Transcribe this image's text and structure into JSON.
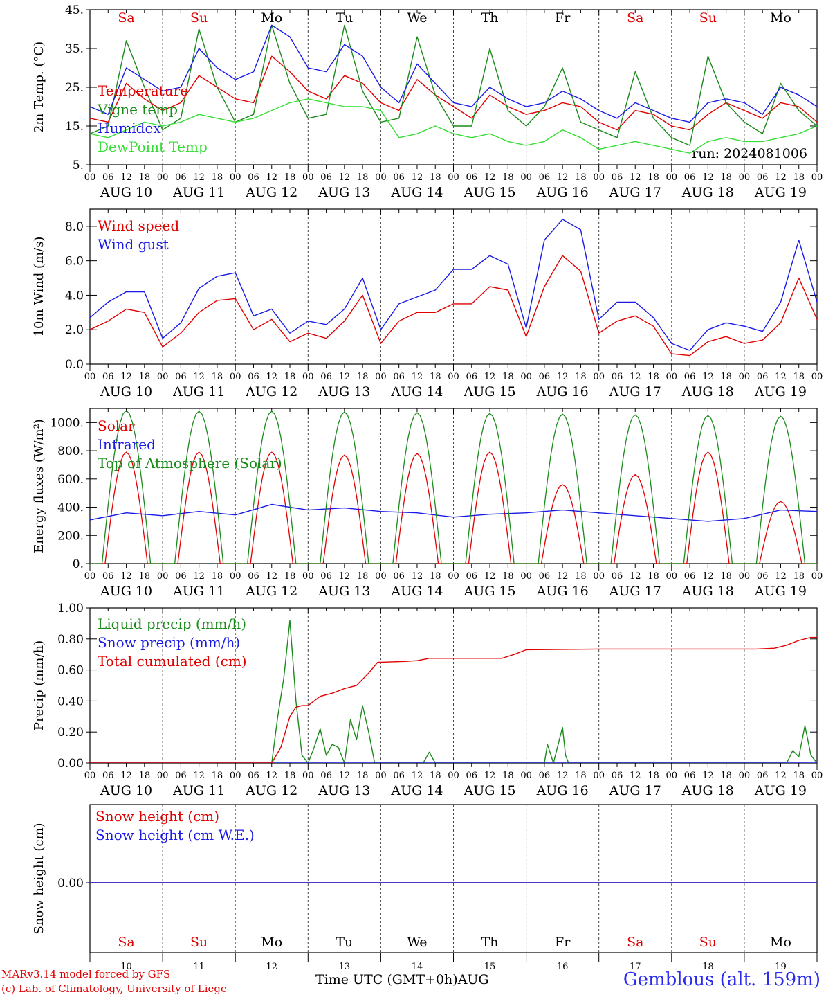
{
  "footer": {
    "credit_line1": "MARv3.14 model forced by GFS",
    "credit_line2": "(c) Lab. of Climatology, University of Liege",
    "xaxis_label": "Time UTC (GMT+0h)AUG",
    "station": "Gemblous (alt. 159m)"
  },
  "colors": {
    "red": "#e00000",
    "green": "#1a8a1a",
    "blue": "#1a1ae6",
    "lightgreen": "#33dd33",
    "purple": "#7a2a9a"
  },
  "chart_data": [
    {
      "type": "line",
      "ylabel": "2m Temp. (°C)",
      "ylim": [
        5,
        45
      ],
      "yticks": [
        "5.",
        "15.",
        "25.",
        "35.",
        "45."
      ],
      "ytick_values": [
        5,
        15,
        25,
        35,
        45
      ],
      "day_names": [
        "Sa",
        "Su",
        "Mo",
        "Tu",
        "We",
        "Th",
        "Fr",
        "Sa",
        "Su",
        "Mo"
      ],
      "day_name_colors": [
        "red",
        "red",
        "black",
        "black",
        "black",
        "black",
        "black",
        "red",
        "red",
        "black"
      ],
      "hour_ticks": [
        "00",
        "06",
        "12",
        "18"
      ],
      "date_labels": [
        "AUG 10",
        "AUG 11",
        "AUG 12",
        "AUG 13",
        "AUG 14",
        "AUG 15",
        "AUG 16",
        "AUG 17",
        "AUG 18",
        "AUG 19"
      ],
      "annotation": "run: 2024081006",
      "x_unit": "hours since AUG 10 00 UTC",
      "series": [
        {
          "name": "Temperature",
          "color": "red",
          "x": [
            0,
            6,
            12,
            18,
            24,
            30,
            36,
            42,
            48,
            54,
            60,
            66,
            72,
            78,
            84,
            90,
            96,
            102,
            108,
            114,
            120,
            126,
            132,
            138,
            144,
            150,
            156,
            162,
            168,
            174,
            180,
            186,
            192,
            198,
            204,
            210,
            216,
            222,
            228,
            234,
            240
          ],
          "y": [
            17,
            16,
            26,
            22,
            19,
            21,
            28,
            25,
            22,
            21,
            33,
            29,
            24,
            22,
            28,
            26,
            21,
            19,
            27,
            23,
            20,
            17,
            23,
            20,
            18,
            19,
            21,
            20,
            16,
            14,
            19,
            18,
            15,
            14,
            18,
            21,
            19,
            17,
            21,
            20,
            16
          ]
        },
        {
          "name": "Vigne temp",
          "color": "green",
          "x": [
            0,
            6,
            12,
            18,
            24,
            30,
            36,
            42,
            48,
            54,
            60,
            66,
            72,
            78,
            84,
            90,
            96,
            102,
            108,
            114,
            120,
            126,
            132,
            138,
            144,
            150,
            156,
            162,
            168,
            174,
            180,
            186,
            192,
            198,
            204,
            210,
            216,
            222,
            228,
            234,
            240
          ],
          "y": [
            13,
            15,
            37,
            25,
            14,
            17,
            40,
            25,
            16,
            18,
            41,
            26,
            17,
            18,
            41,
            24,
            16,
            17,
            38,
            23,
            15,
            15,
            35,
            19,
            15,
            20,
            30,
            16,
            14,
            12,
            29,
            17,
            12,
            10,
            33,
            21,
            16,
            13,
            26,
            19,
            15
          ]
        },
        {
          "name": "Humidex",
          "color": "blue",
          "x": [
            0,
            6,
            12,
            18,
            24,
            30,
            36,
            42,
            48,
            54,
            60,
            66,
            72,
            78,
            84,
            90,
            96,
            102,
            108,
            114,
            120,
            126,
            132,
            138,
            144,
            150,
            156,
            162,
            168,
            174,
            180,
            186,
            192,
            198,
            204,
            210,
            216,
            222,
            228,
            234,
            240
          ],
          "y": [
            20,
            18,
            30,
            27,
            24,
            25,
            35,
            30,
            27,
            29,
            41,
            38,
            30,
            29,
            36,
            33,
            25,
            21,
            31,
            26,
            21,
            20,
            25,
            22,
            20,
            21,
            24,
            22,
            19,
            17,
            21,
            19,
            17,
            16,
            21,
            22,
            21,
            18,
            25,
            23,
            20
          ]
        },
        {
          "name": "DewPoint Temp",
          "color": "lightgreen",
          "x": [
            0,
            6,
            12,
            18,
            24,
            30,
            36,
            42,
            48,
            54,
            60,
            66,
            72,
            78,
            84,
            90,
            96,
            102,
            108,
            114,
            120,
            126,
            132,
            138,
            144,
            150,
            156,
            162,
            168,
            174,
            180,
            186,
            192,
            198,
            204,
            210,
            216,
            222,
            228,
            234,
            240
          ],
          "y": [
            13,
            12,
            14,
            16,
            15,
            16,
            18,
            17,
            16,
            17,
            19,
            21,
            22,
            21,
            20,
            20,
            19,
            12,
            13,
            15,
            13,
            12,
            13,
            11,
            10,
            11,
            14,
            12,
            9,
            10,
            11,
            10,
            9,
            8,
            11,
            12,
            11,
            11,
            12,
            13,
            15
          ]
        }
      ]
    },
    {
      "type": "line",
      "ylabel": "10m Wind (m/s)",
      "ylim": [
        0,
        9
      ],
      "yticks": [
        "0.0",
        "2.0",
        "4.0",
        "6.0",
        "8.0"
      ],
      "ytick_values": [
        0,
        2,
        4,
        6,
        8
      ],
      "reference_line": 5,
      "hour_ticks": [
        "00",
        "06",
        "12",
        "18"
      ],
      "date_labels": [
        "AUG 10",
        "AUG 11",
        "AUG 12",
        "AUG 13",
        "AUG 14",
        "AUG 15",
        "AUG 16",
        "AUG 17",
        "AUG 18",
        "AUG 19"
      ],
      "x_unit": "hours since AUG 10 00 UTC",
      "series": [
        {
          "name": "Wind speed",
          "color": "red",
          "x": [
            0,
            6,
            12,
            18,
            24,
            30,
            36,
            42,
            48,
            54,
            60,
            66,
            72,
            78,
            84,
            90,
            96,
            102,
            108,
            114,
            120,
            126,
            132,
            138,
            144,
            150,
            156,
            162,
            168,
            174,
            180,
            186,
            192,
            198,
            204,
            210,
            216,
            222,
            228,
            234,
            240
          ],
          "y": [
            2.0,
            2.5,
            3.2,
            3.0,
            1.0,
            1.8,
            3.0,
            3.7,
            3.8,
            2.0,
            2.6,
            1.3,
            1.8,
            1.5,
            2.5,
            4.0,
            1.2,
            2.5,
            3.0,
            3.0,
            3.5,
            3.5,
            4.5,
            4.3,
            1.6,
            4.5,
            6.3,
            5.4,
            1.8,
            2.5,
            2.8,
            2.2,
            0.6,
            0.5,
            1.3,
            1.6,
            1.2,
            1.4,
            2.4,
            5.0,
            2.6
          ]
        },
        {
          "name": "Wind gust",
          "color": "blue",
          "x": [
            0,
            6,
            12,
            18,
            24,
            30,
            36,
            42,
            48,
            54,
            60,
            66,
            72,
            78,
            84,
            90,
            96,
            102,
            108,
            114,
            120,
            126,
            132,
            138,
            144,
            150,
            156,
            162,
            168,
            174,
            180,
            186,
            192,
            198,
            204,
            210,
            216,
            222,
            228,
            234,
            240
          ],
          "y": [
            2.7,
            3.6,
            4.2,
            4.2,
            1.5,
            2.4,
            4.4,
            5.1,
            5.3,
            2.8,
            3.2,
            1.8,
            2.5,
            2.3,
            3.2,
            5.0,
            2.0,
            3.5,
            3.9,
            4.3,
            5.5,
            5.5,
            6.3,
            5.8,
            2.1,
            7.2,
            8.4,
            7.8,
            2.6,
            3.6,
            3.6,
            2.7,
            1.2,
            0.8,
            2.0,
            2.4,
            2.2,
            1.9,
            3.6,
            7.2,
            3.6
          ]
        }
      ]
    },
    {
      "type": "line",
      "ylabel": "Energy fluxes (W/m²)",
      "ylim": [
        0,
        1100
      ],
      "yticks": [
        "0.",
        "200.",
        "400.",
        "600.",
        "800.",
        "1000."
      ],
      "ytick_values": [
        0,
        200,
        400,
        600,
        800,
        1000
      ],
      "hour_ticks": [
        "00",
        "06",
        "12",
        "18"
      ],
      "date_labels": [
        "AUG 10",
        "AUG 11",
        "AUG 12",
        "AUG 13",
        "AUG 14",
        "AUG 15",
        "AUG 16",
        "AUG 17",
        "AUG 18",
        "AUG 19"
      ],
      "x_unit": "hours since AUG 10 00 UTC",
      "day_peaks": {
        "solar": [
          790,
          790,
          790,
          770,
          780,
          790,
          560,
          630,
          790,
          440
        ],
        "toa": [
          1085,
          1080,
          1080,
          1075,
          1070,
          1065,
          1060,
          1055,
          1050,
          1045
        ]
      },
      "series": [
        {
          "name": "Solar",
          "color": "red"
        },
        {
          "name": "Infrared",
          "color": "blue",
          "x": [
            0,
            12,
            24,
            36,
            48,
            60,
            72,
            84,
            96,
            108,
            120,
            132,
            144,
            156,
            168,
            180,
            192,
            204,
            216,
            228,
            240
          ],
          "y": [
            310,
            360,
            340,
            370,
            345,
            420,
            380,
            395,
            370,
            360,
            330,
            350,
            360,
            380,
            360,
            340,
            320,
            300,
            320,
            380,
            370
          ]
        },
        {
          "name": "Top of Atmosphere (Solar)",
          "color": "green"
        }
      ]
    },
    {
      "type": "line",
      "ylabel": "Precip (mm/h)",
      "ylim": [
        0,
        1.0
      ],
      "yticks": [
        "0.00",
        "0.20",
        "0.40",
        "0.60",
        "0.80",
        "1.00"
      ],
      "ytick_values": [
        0,
        0.2,
        0.4,
        0.6,
        0.8,
        1.0
      ],
      "hour_ticks": [
        "00",
        "06",
        "12",
        "18"
      ],
      "date_labels": [
        "AUG 10",
        "AUG 11",
        "AUG 12",
        "AUG 13",
        "AUG 14",
        "AUG 15",
        "AUG 16",
        "AUG 17",
        "AUG 18",
        "AUG 19"
      ],
      "x_unit": "hours since AUG 10 00 UTC",
      "series": [
        {
          "name": "Liquid precip (mm/h)",
          "color": "green",
          "x": [
            0,
            60,
            62,
            64,
            66,
            68,
            70,
            72,
            74,
            76,
            78,
            80,
            82,
            84,
            86,
            88,
            90,
            92,
            94,
            96,
            110,
            112,
            114,
            150,
            151,
            153,
            156,
            157,
            158,
            230,
            232,
            234,
            236,
            238,
            240
          ],
          "y": [
            0,
            0,
            0.3,
            0.55,
            0.92,
            0.4,
            0.05,
            0,
            0.1,
            0.22,
            0.05,
            0.12,
            0.1,
            0.0,
            0.28,
            0.15,
            0.37,
            0.2,
            0.0,
            0,
            0,
            0.07,
            0,
            0,
            0.12,
            0,
            0.23,
            0.05,
            0,
            0,
            0.08,
            0.04,
            0.24,
            0.05,
            0
          ]
        },
        {
          "name": "Snow precip (mm/h)",
          "color": "blue",
          "x": [
            0,
            240
          ],
          "y": [
            0,
            0
          ]
        },
        {
          "name": "Total cumulated (cm)",
          "color": "red",
          "x": [
            0,
            60,
            63,
            66,
            68,
            70,
            72,
            76,
            80,
            84,
            88,
            92,
            95,
            96,
            104,
            108,
            112,
            120,
            136,
            140,
            144,
            168,
            220,
            226,
            230,
            234,
            238,
            240
          ],
          "y": [
            0,
            0,
            0.1,
            0.3,
            0.36,
            0.37,
            0.37,
            0.43,
            0.45,
            0.48,
            0.5,
            0.58,
            0.65,
            0.65,
            0.655,
            0.66,
            0.675,
            0.675,
            0.675,
            0.7,
            0.73,
            0.735,
            0.735,
            0.74,
            0.76,
            0.79,
            0.81,
            0.81
          ]
        }
      ]
    },
    {
      "type": "line",
      "ylabel": "Snow height (cm)",
      "yticks": [
        "0.00"
      ],
      "ytick_values": [
        0
      ],
      "day_names": [
        "Sa",
        "Su",
        "Mo",
        "Tu",
        "We",
        "Th",
        "Fr",
        "Sa",
        "Su",
        "Mo"
      ],
      "day_name_colors": [
        "red",
        "red",
        "black",
        "black",
        "black",
        "black",
        "black",
        "red",
        "red",
        "black"
      ],
      "day_numbers": [
        "10",
        "11",
        "12",
        "13",
        "14",
        "15",
        "16",
        "17",
        "18",
        "19"
      ],
      "series": [
        {
          "name": "Snow height (cm)",
          "color": "red",
          "x": [
            0,
            240
          ],
          "y": [
            0,
            0
          ]
        },
        {
          "name": "Snow height (cm W.E.)",
          "color": "blue",
          "x": [
            0,
            240
          ],
          "y": [
            0,
            0
          ]
        }
      ]
    }
  ]
}
